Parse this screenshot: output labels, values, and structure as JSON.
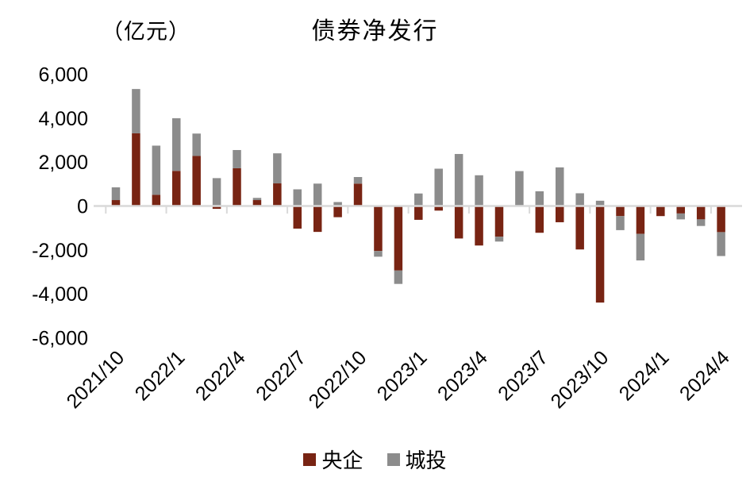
{
  "chart_data": {
    "type": "bar",
    "stacked": true,
    "title": "债券净发行",
    "unit_label": "（亿元）",
    "grid": false,
    "legend_position": "bottom",
    "ylim": [
      -6000,
      6000
    ],
    "y_tick_step": 2000,
    "y_tick_labels": [
      "6,000",
      "4,000",
      "2,000",
      "0",
      "-2,000",
      "-4,000",
      "-6,000"
    ],
    "x_tick_labels": [
      "2021/10",
      "2022/1",
      "2022/4",
      "2022/7",
      "2022/10",
      "2023/1",
      "2023/4",
      "2023/7",
      "2023/10",
      "2024/1",
      "2024/4"
    ],
    "categories": [
      "2021/10",
      "2021/11",
      "2021/12",
      "2022/1",
      "2022/2",
      "2022/3",
      "2022/4",
      "2022/5",
      "2022/6",
      "2022/7",
      "2022/8",
      "2022/9",
      "2022/10",
      "2022/11",
      "2022/12",
      "2023/1",
      "2023/2",
      "2023/3",
      "2023/4",
      "2023/5",
      "2023/6",
      "2023/7",
      "2023/8",
      "2023/9",
      "2023/10",
      "2023/11",
      "2023/12",
      "2024/1",
      "2024/2",
      "2024/3",
      "2024/4"
    ],
    "series": [
      {
        "name": "央企",
        "color": "#782413",
        "values": [
          270,
          3310,
          510,
          1600,
          2280,
          -130,
          1720,
          270,
          1030,
          -1030,
          -1180,
          -510,
          1020,
          -2050,
          -2940,
          -630,
          -210,
          -1480,
          -1800,
          -1400,
          0,
          -1220,
          -740,
          -1980,
          -4400,
          -460,
          -1270,
          -460,
          -340,
          -610,
          -1190
        ]
      },
      {
        "name": "城投",
        "color": "#8C8C8C",
        "values": [
          580,
          2020,
          2240,
          2400,
          1020,
          1270,
          830,
          100,
          1370,
          760,
          1020,
          180,
          300,
          -260,
          -610,
          570,
          1700,
          2370,
          1400,
          -220,
          1590,
          670,
          1760,
          580,
          240,
          -640,
          -1210,
          0,
          -270,
          -300,
          -1090
        ]
      }
    ],
    "axis_color": "#D9D9D9",
    "text_color": "#000000"
  }
}
